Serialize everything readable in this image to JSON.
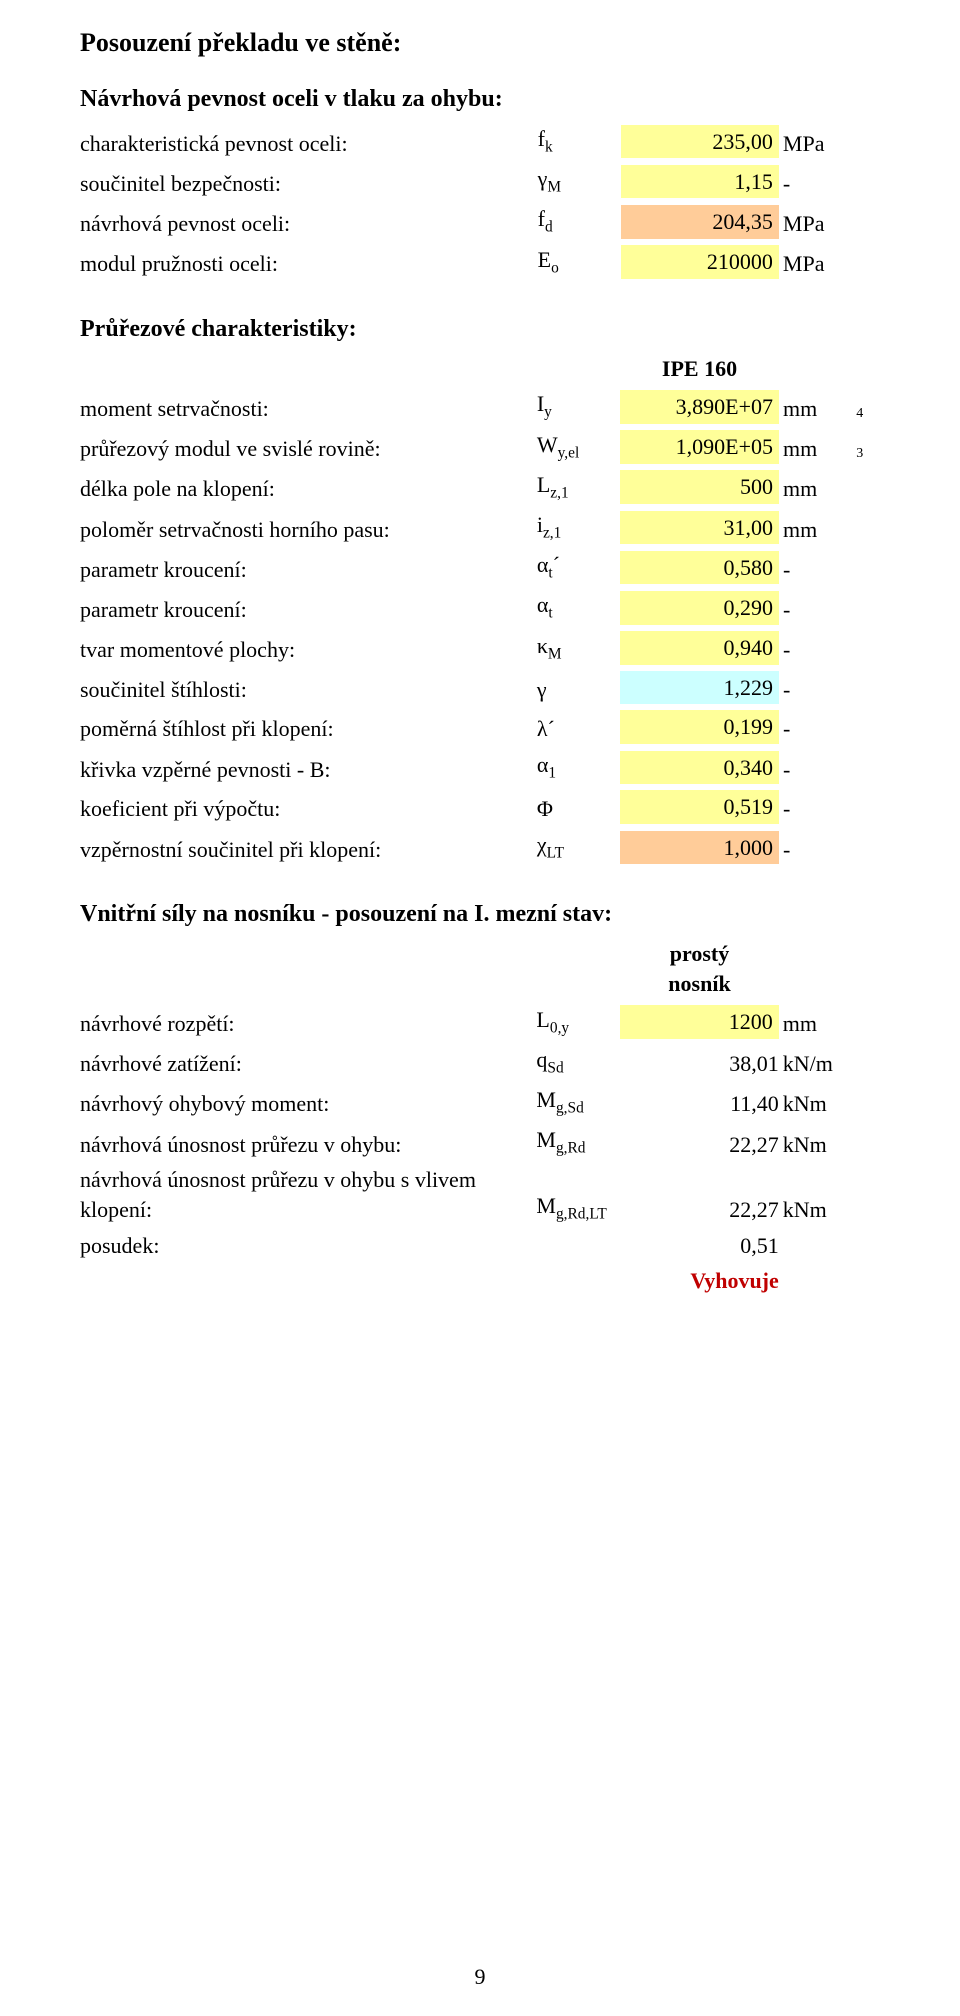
{
  "colors": {
    "background": "#ffffff",
    "text": "#000000",
    "highlight_yellow": "#ffff99",
    "highlight_blue": "#ccffff",
    "highlight_orange": "#ffcc99",
    "result_red": "#c00000"
  },
  "typography": {
    "family": "Times New Roman",
    "title_size_pt": 18,
    "subtitle_size_pt": 16,
    "body_size_pt": 15
  },
  "title": "Posouzení překladu ve stěně:",
  "sections": {
    "s1": {
      "heading": "Návrhová pevnost oceli v tlaku za ohybu:",
      "rows": [
        {
          "label": "charakteristická pevnost oceli:",
          "sym": "f<sub>k</sub>",
          "val": "235,00",
          "unit": "MPa",
          "hl": "hl-yellow"
        },
        {
          "label": "součinitel bezpečnosti:",
          "sym": "γ<sub>M</sub>",
          "val": "1,15",
          "unit": "-",
          "hl": "hl-yellow"
        },
        {
          "label": "návrhová pevnost oceli:",
          "sym": "f<sub>d</sub>",
          "val": "204,35",
          "unit": "MPa",
          "hl": "hl-orange"
        },
        {
          "label": "modul pružnosti oceli:",
          "sym": "E<sub>o</sub>",
          "val": "210000",
          "unit": "MPa",
          "hl": "hl-yellow"
        }
      ]
    },
    "s2": {
      "heading": "Průřezové charakteristiky:",
      "profile": "IPE 160",
      "rows": [
        {
          "label": "moment setrvačnosti:",
          "sym": "I<sub>y</sub>",
          "val": "3,890E+07",
          "unit": "mm",
          "sup": "4",
          "hl": "hl-yellow"
        },
        {
          "label": "průřezový modul ve svislé rovině:",
          "sym": "W<sub>y,el</sub>",
          "val": "1,090E+05",
          "unit": "mm",
          "sup": "3",
          "hl": "hl-yellow"
        },
        {
          "label": "délka pole na klopení:",
          "sym": "L<sub>z,1</sub>",
          "val": "500",
          "unit": "mm",
          "hl": "hl-yellow"
        },
        {
          "label": "poloměr setrvačnosti horního pasu:",
          "sym": "i<sub>z,1</sub>",
          "val": "31,00",
          "unit": "mm",
          "hl": "hl-yellow"
        },
        {
          "label": "parametr kroucení:",
          "sym": "α<sub>t</sub>´",
          "val": "0,580",
          "unit": "-",
          "hl": "hl-yellow"
        },
        {
          "label": "parametr kroucení:",
          "sym": "α<sub>t</sub>",
          "val": "0,290",
          "unit": "-",
          "hl": "hl-yellow"
        },
        {
          "label": "tvar momentové plochy:",
          "sym": "κ<sub>M</sub>",
          "val": "0,940",
          "unit": "-",
          "hl": "hl-yellow"
        },
        {
          "label": "součinitel štíhlosti:",
          "sym": "γ",
          "val": "1,229",
          "unit": "-",
          "hl": "hl-blue"
        },
        {
          "label": "poměrná štíhlost při klopení:",
          "sym": "λ´",
          "val": "0,199",
          "unit": "-",
          "hl": "hl-yellow"
        },
        {
          "label": "křivka vzpěrné pevnosti - B:",
          "sym": "α<sub>1</sub>",
          "val": "0,340",
          "unit": "-",
          "hl": "hl-yellow"
        },
        {
          "label": "koeficient při výpočtu:",
          "sym": "Φ",
          "val": "0,519",
          "unit": "-",
          "hl": "hl-yellow"
        },
        {
          "label": "vzpěrnostní součinitel při klopení:",
          "sym": "χ<sub>LT</sub>",
          "val": "1,000",
          "unit": "-",
          "hl": "hl-orange"
        }
      ]
    },
    "s3": {
      "heading": "Vnitřní síly na nosníku - posouzení na I. mezní stav:",
      "subheader": "prostý\nnosník",
      "rows": [
        {
          "label": "návrhové rozpětí:",
          "sym": "L<sub>0,y</sub>",
          "val": "1200",
          "unit": "mm",
          "hl": "hl-yellow"
        },
        {
          "label": "návrhové zatížení:",
          "sym": "q<sub>Sd</sub>",
          "val": "38,01",
          "unit": "kN/m",
          "hl": ""
        },
        {
          "label": "návrhový ohybový moment:",
          "sym": "M<sub>g,Sd</sub>",
          "val": "11,40",
          "unit": "kNm",
          "hl": ""
        },
        {
          "label": "návrhová únosnost průřezu v ohybu:",
          "sym": "M<sub>g,Rd</sub>",
          "val": "22,27",
          "unit": "kNm",
          "hl": ""
        },
        {
          "label": "návrhová únosnost průřezu v ohybu s vlivem klopení:",
          "sym": "M<sub>g,Rd,LT</sub>",
          "val": "22,27",
          "unit": "kNm",
          "hl": ""
        },
        {
          "label": "posudek:",
          "sym": "",
          "val": "0,51",
          "unit": "",
          "hl": ""
        }
      ],
      "result": "Vyhovuje"
    }
  },
  "page_number": "9"
}
